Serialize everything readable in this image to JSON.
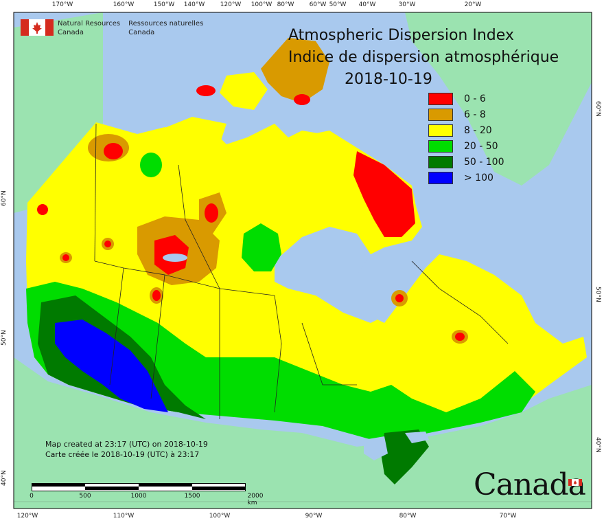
{
  "map": {
    "title_en": "Atmospheric Dispersion Index",
    "title_fr": "Indice de dispersion atmosphérique",
    "date": "2018-10-19",
    "agency_en_1": "Natural Resources",
    "agency_en_2": "Canada",
    "agency_fr_1": "Ressources naturelles",
    "agency_fr_2": "Canada",
    "created_en": "Map created at 23:17 (UTC) on 2018-10-19",
    "created_fr": "Carte créée le 2018-10-19 (UTC) à 23:17",
    "wordmark": "Canada",
    "scale_labels": [
      "0",
      "500",
      "1000",
      "1500",
      "2000 km"
    ],
    "top_ticks": [
      "170°W",
      "160°W",
      "150°W",
      "140°W",
      "120°W",
      "100°W",
      "80°W",
      "60°W",
      "50°W",
      "40°W",
      "30°W",
      "20°W"
    ],
    "bottom_ticks": [
      "120°W",
      "110°W",
      "100°W",
      "90°W",
      "80°W",
      "70°W"
    ],
    "left_ticks": [
      "60°N",
      "50°N",
      "40°N"
    ],
    "right_ticks": [
      "60°N",
      "50°N",
      "40°N"
    ]
  },
  "legend": [
    {
      "label": "0 - 6",
      "color": "#ff0000"
    },
    {
      "label": "6 - 8",
      "color": "#d99a00"
    },
    {
      "label": "8 - 20",
      "color": "#ffff00"
    },
    {
      "label": "20 - 50",
      "color": "#00dd00"
    },
    {
      "label": "50 - 100",
      "color": "#007a00"
    },
    {
      "label": "> 100",
      "color": "#0000ff"
    }
  ],
  "colors": {
    "ocean": "#a9c9ee",
    "land": "#9be3b0",
    "water": "#a9c9ee",
    "frame": "#000000"
  }
}
